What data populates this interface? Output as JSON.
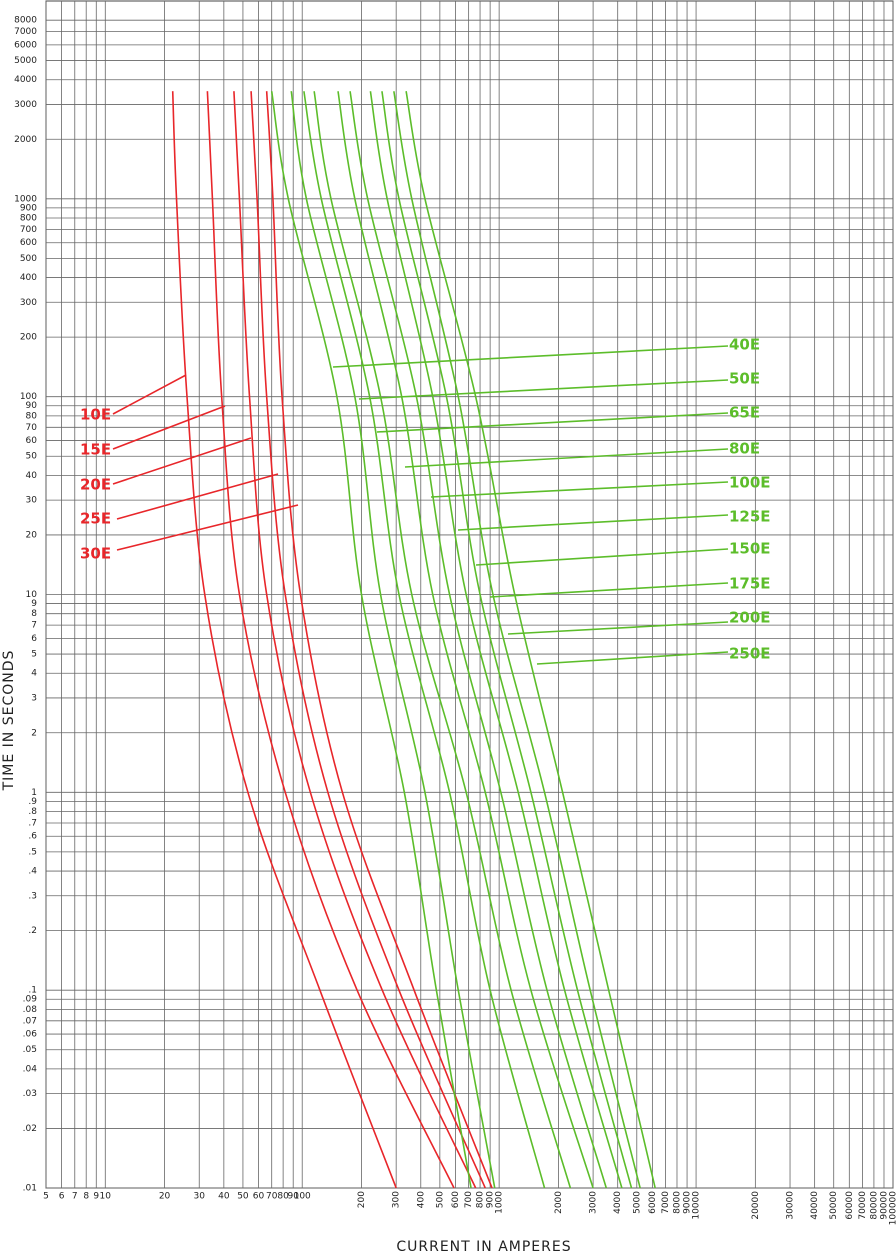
{
  "chart_data": {
    "type": "line",
    "xlabel": "CURRENT IN AMPERES",
    "ylabel": "TIME IN SECONDS",
    "log_x": true,
    "log_y": true,
    "grid": true,
    "xlim": [
      5,
      100000
    ],
    "ylim": [
      0.01,
      10000
    ],
    "xticks": [
      5,
      6,
      7,
      8,
      9,
      10,
      20,
      30,
      40,
      50,
      60,
      70,
      80,
      90,
      100,
      200,
      300,
      400,
      500,
      600,
      700,
      800,
      900,
      1000,
      2000,
      3000,
      4000,
      5000,
      6000,
      7000,
      8000,
      9000,
      10000,
      20000,
      30000,
      40000,
      50000,
      60000,
      70000,
      80000,
      90000,
      100000
    ],
    "yticks": [
      {
        "value": 0.01,
        "label": ".01"
      },
      {
        "value": 0.02,
        "label": ".02"
      },
      {
        "value": 0.03,
        "label": ".03"
      },
      {
        "value": 0.04,
        "label": ".04"
      },
      {
        "value": 0.05,
        "label": ".05"
      },
      {
        "value": 0.06,
        "label": ".06"
      },
      {
        "value": 0.07,
        "label": ".07"
      },
      {
        "value": 0.08,
        "label": ".08"
      },
      {
        "value": 0.09,
        "label": ".09"
      },
      {
        "value": 0.1,
        "label": ".1"
      },
      {
        "value": 0.2,
        "label": ".2"
      },
      {
        "value": 0.3,
        "label": ".3"
      },
      {
        "value": 0.4,
        "label": ".4"
      },
      {
        "value": 0.5,
        "label": ".5"
      },
      {
        "value": 0.6,
        "label": ".6"
      },
      {
        "value": 0.7,
        "label": ".7"
      },
      {
        "value": 0.8,
        "label": ".8"
      },
      {
        "value": 0.9,
        "label": ".9"
      },
      1,
      2,
      3,
      4,
      5,
      6,
      7,
      8,
      9,
      10,
      20,
      30,
      40,
      50,
      60,
      70,
      80,
      90,
      100,
      200,
      300,
      400,
      500,
      600,
      700,
      800,
      900,
      1000,
      2000,
      3000,
      4000,
      5000,
      6000,
      7000,
      8000
    ],
    "series": [
      {
        "name": "10E",
        "color": "#e8262a",
        "x": [
          22,
          23,
          26,
          32,
          53,
          123,
          300
        ],
        "y": [
          3500,
          1000,
          100,
          10,
          1,
          0.1,
          0.01
        ]
      },
      {
        "name": "15E",
        "color": "#e8262a",
        "x": [
          33,
          35,
          39,
          48,
          82,
          190,
          590
        ],
        "y": [
          3500,
          1000,
          100,
          10,
          1,
          0.1,
          0.01
        ]
      },
      {
        "name": "20E",
        "color": "#e8262a",
        "x": [
          45,
          48,
          54,
          66,
          110,
          255,
          760
        ],
        "y": [
          3500,
          1000,
          100,
          10,
          1,
          0.1,
          0.01
        ]
      },
      {
        "name": "25E",
        "color": "#e8262a",
        "x": [
          55,
          59,
          66,
          82,
          135,
          310,
          850
        ],
        "y": [
          3500,
          1000,
          100,
          10,
          1,
          0.1,
          0.01
        ]
      },
      {
        "name": "30E",
        "color": "#e8262a",
        "x": [
          66,
          71,
          79,
          98,
          160,
          370,
          920
        ],
        "y": [
          3500,
          1000,
          100,
          10,
          1,
          0.1,
          0.01
        ]
      },
      {
        "name": "40E",
        "color": "#5cbd2a",
        "x": [
          70,
          85,
          150,
          200,
          330,
          480,
          720
        ],
        "y": [
          3500,
          1000,
          100,
          10,
          1,
          0.1,
          0.01
        ]
      },
      {
        "name": "50E",
        "color": "#5cbd2a",
        "x": [
          88,
          105,
          185,
          250,
          420,
          620,
          950
        ],
        "y": [
          3500,
          1000,
          100,
          10,
          1,
          0.1,
          0.01
        ]
      },
      {
        "name": "65E",
        "color": "#5cbd2a",
        "x": [
          102,
          125,
          220,
          310,
          560,
          900,
          1700
        ],
        "y": [
          3500,
          1000,
          100,
          10,
          1,
          0.1,
          0.01
        ]
      },
      {
        "name": "80E",
        "color": "#5cbd2a",
        "x": [
          115,
          140,
          250,
          360,
          680,
          1150,
          2300
        ],
        "y": [
          3500,
          1000,
          100,
          10,
          1,
          0.1,
          0.01
        ]
      },
      {
        "name": "100E",
        "color": "#5cbd2a",
        "x": [
          152,
          185,
          320,
          460,
          850,
          1450,
          3000
        ],
        "y": [
          3500,
          1000,
          100,
          10,
          1,
          0.1,
          0.01
        ]
      },
      {
        "name": "125E",
        "color": "#5cbd2a",
        "x": [
          175,
          215,
          380,
          560,
          1020,
          1750,
          3500
        ],
        "y": [
          3500,
          1000,
          100,
          10,
          1,
          0.1,
          0.01
        ]
      },
      {
        "name": "150E",
        "color": "#5cbd2a",
        "x": [
          222,
          270,
          460,
          680,
          1250,
          2150,
          4200
        ],
        "y": [
          3500,
          1000,
          100,
          10,
          1,
          0.1,
          0.01
        ]
      },
      {
        "name": "175E",
        "color": "#5cbd2a",
        "x": [
          254,
          310,
          540,
          800,
          1450,
          2500,
          4700
        ],
        "y": [
          3500,
          1000,
          100,
          10,
          1,
          0.1,
          0.01
        ]
      },
      {
        "name": "200E",
        "color": "#5cbd2a",
        "x": [
          292,
          360,
          620,
          930,
          1700,
          2900,
          5200
        ],
        "y": [
          3500,
          1000,
          100,
          10,
          1,
          0.1,
          0.01
        ]
      },
      {
        "name": "250E",
        "color": "#5cbd2a",
        "x": [
          337,
          420,
          760,
          1200,
          2100,
          3600,
          6200
        ],
        "y": [
          3500,
          1000,
          100,
          10,
          1,
          0.1,
          0.01
        ]
      }
    ]
  }
}
